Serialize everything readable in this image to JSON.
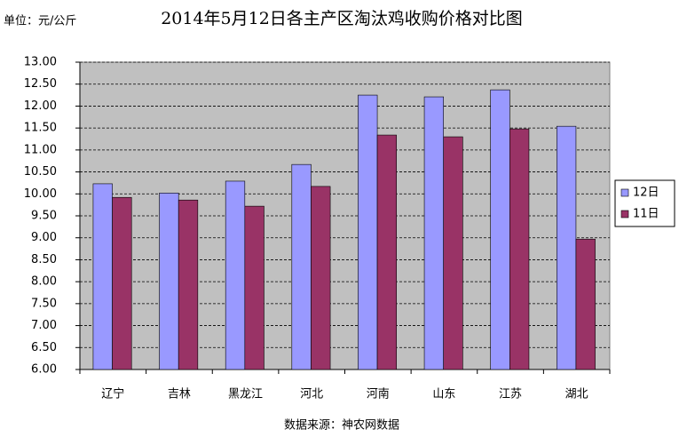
{
  "chart_data": {
    "type": "bar",
    "title": "2014年5月12日各主产区淘汰鸡收购价格对比图",
    "unit_label": "单位：元/公斤",
    "source": "数据来源：神农网数据",
    "categories": [
      "辽宁",
      "吉林",
      "黑龙江",
      "河北",
      "河南",
      "山东",
      "江苏",
      "湖北"
    ],
    "series": [
      {
        "name": "12日",
        "color": "#9999ff",
        "values": [
          10.23,
          10.02,
          10.29,
          10.67,
          12.25,
          12.21,
          12.37,
          11.54
        ]
      },
      {
        "name": "11日",
        "color": "#993366",
        "values": [
          9.92,
          9.86,
          9.72,
          10.17,
          11.34,
          11.3,
          11.48,
          8.97
        ]
      }
    ],
    "ylim": [
      6,
      13
    ],
    "yticks": [
      {
        "value": 6,
        "label": "6.00"
      },
      {
        "value": 6.5,
        "label": "6.50"
      },
      {
        "value": 7,
        "label": "7.00"
      },
      {
        "value": 7.5,
        "label": "7.50"
      },
      {
        "value": 8,
        "label": "8.00"
      },
      {
        "value": 8.5,
        "label": "8.50"
      },
      {
        "value": 9,
        "label": "9.00"
      },
      {
        "value": 9.5,
        "label": "9.50"
      },
      {
        "value": 10,
        "label": "10.00"
      },
      {
        "value": 10.5,
        "label": "10.50"
      },
      {
        "value": 11,
        "label": "11.00"
      },
      {
        "value": 11.5,
        "label": "11.50"
      },
      {
        "value": 12,
        "label": "12.00"
      },
      {
        "value": 12.5,
        "label": "12.50"
      },
      {
        "value": 13,
        "label": "13.00"
      }
    ],
    "grid": true,
    "legend": "right"
  }
}
